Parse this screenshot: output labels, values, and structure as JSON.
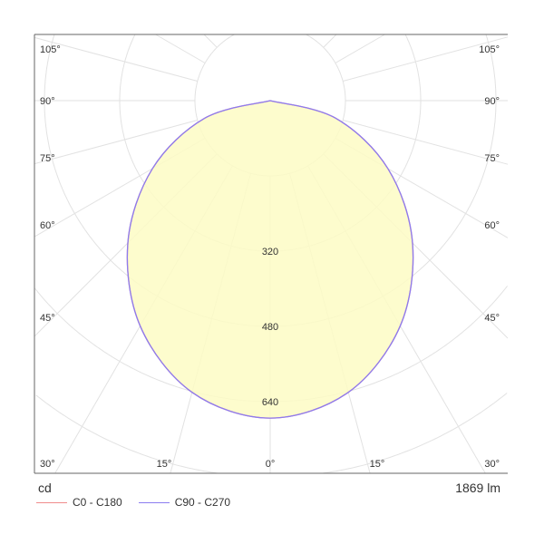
{
  "chart_data": {
    "type": "polar",
    "unit_label": "cd",
    "flux_label": "1869 lm",
    "radial_ticks": [
      160,
      320,
      480,
      640
    ],
    "radial_tick_labels": [
      "320",
      "480",
      "640"
    ],
    "angle_labels_left": [
      "105°",
      "90°",
      "75°",
      "60°",
      "45°",
      "30°"
    ],
    "angle_labels_bottom": [
      "15°",
      "0°",
      "15°"
    ],
    "angle_labels_right": [
      "105°",
      "90°",
      "75°",
      "60°",
      "45°",
      "30°"
    ],
    "angles_deg": [
      0,
      15,
      30,
      45,
      60,
      75,
      90
    ],
    "series": [
      {
        "name": "C0 - C180",
        "color": "#f08c8c",
        "intensity_cd": [
          675,
          642,
          553,
          428,
          289,
          144,
          0
        ]
      },
      {
        "name": "C90 - C270",
        "color": "#8c7cf0",
        "intensity_cd": [
          675,
          642,
          553,
          428,
          289,
          144,
          0
        ]
      }
    ],
    "fill_color": "#fdfbc4",
    "grid": true
  }
}
